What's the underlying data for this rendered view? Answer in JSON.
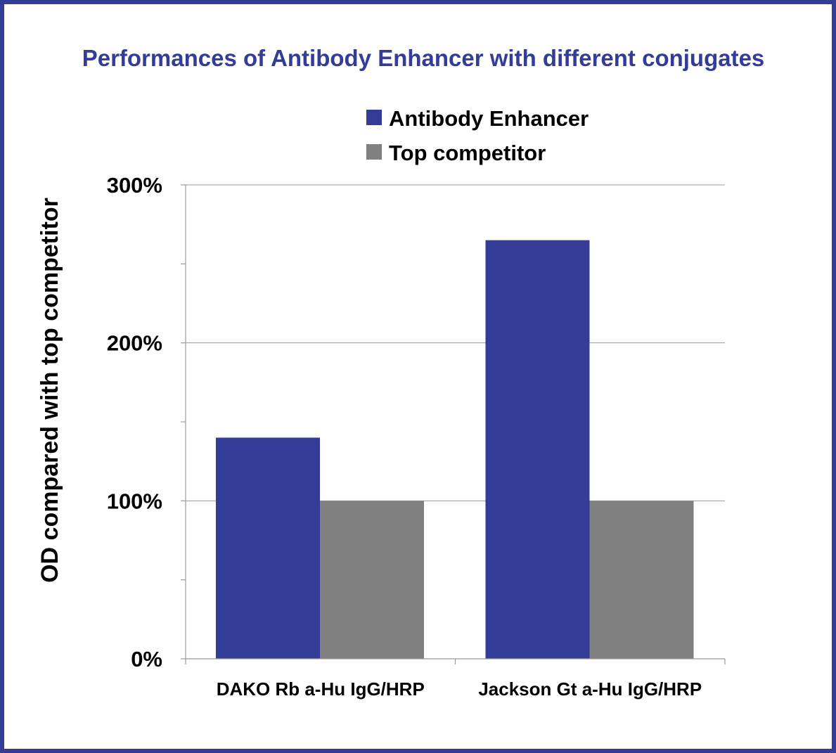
{
  "chart_data": {
    "type": "bar",
    "title": "Performances of Antibody Enhancer with different conjugates",
    "ylabel": "OD compared with top competitor",
    "xlabel": "",
    "categories": [
      "DAKO Rb a-Hu IgG/HRP",
      "Jackson Gt a-Hu IgG/HRP"
    ],
    "series": [
      {
        "name": "Antibody Enhancer",
        "values": [
          140,
          265
        ],
        "color": "#333c96"
      },
      {
        "name": "Top competitor",
        "values": [
          100,
          100
        ],
        "color": "#808080"
      }
    ],
    "ylim": [
      0,
      300
    ],
    "yticks": [
      0,
      100,
      200,
      300
    ],
    "ytick_labels": [
      "0%",
      "100%",
      "200%",
      "300%"
    ],
    "y_minor_ticks": [
      50,
      150,
      250
    ],
    "grid": true,
    "legend_position": "top"
  },
  "colors": {
    "border": "#333d99",
    "title": "#333d99",
    "grid": "#999999"
  }
}
